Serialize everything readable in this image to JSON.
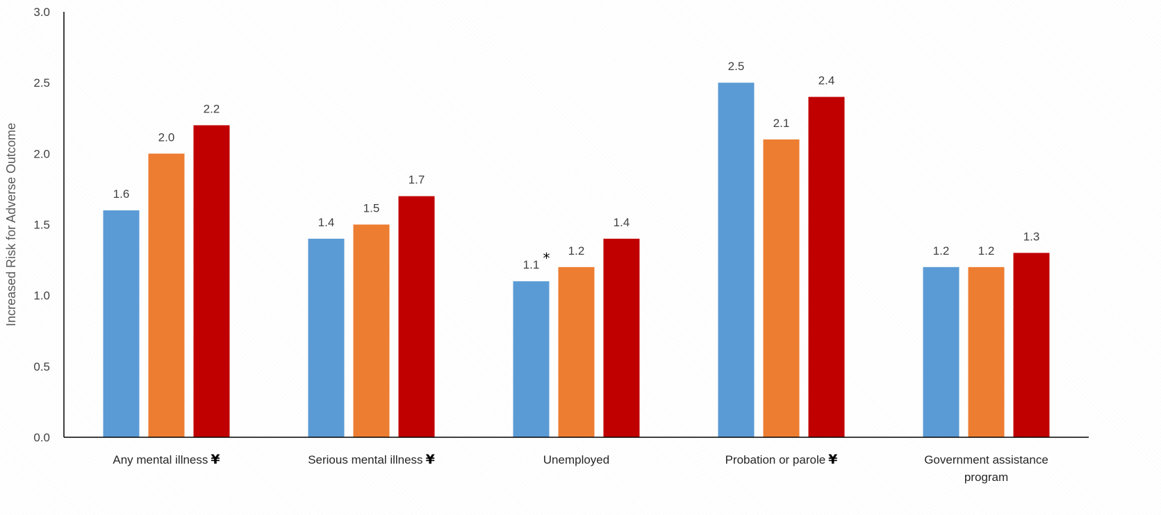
{
  "chart_data": {
    "type": "bar",
    "categories": [
      {
        "label": "Any mental illness",
        "marker": "¥",
        "lines": [
          "Any mental illness"
        ]
      },
      {
        "label": "Serious mental illness",
        "marker": "¥",
        "lines": [
          "Serious mental illness"
        ]
      },
      {
        "label": "Unemployed",
        "marker": "",
        "lines": [
          "Unemployed"
        ]
      },
      {
        "label": "Probation or parole",
        "marker": "¥",
        "lines": [
          "Probation or parole"
        ]
      },
      {
        "label": "Government assistance program",
        "marker": "",
        "lines": [
          "Government assistance",
          "program"
        ]
      }
    ],
    "series": [
      {
        "values": [
          1.6,
          1.4,
          1.1,
          2.5,
          1.2
        ],
        "color": "#5B9BD5"
      },
      {
        "values": [
          2.0,
          1.5,
          1.2,
          2.1,
          1.2
        ],
        "color": "#ED7D31"
      },
      {
        "values": [
          2.2,
          1.7,
          1.4,
          2.4,
          1.3
        ],
        "color": "#C00000"
      }
    ],
    "data_labels": [
      [
        "1.6",
        "1.4",
        "1.1",
        "2.5",
        "1.2"
      ],
      [
        "2.0",
        "1.5",
        "1.2",
        "2.1",
        "1.2"
      ],
      [
        "2.2",
        "1.7",
        "1.4",
        "2.4",
        "1.3"
      ]
    ],
    "annotations": [
      {
        "series": 0,
        "category": 2,
        "text": "*"
      }
    ],
    "ylabel": "Increased Risk for Adverse Outcome",
    "ylim": [
      0,
      3.0
    ],
    "yticks": [
      "0.0",
      "0.5",
      "1.0",
      "1.5",
      "2.0",
      "2.5",
      "3.0"
    ],
    "ytick_values": [
      0,
      0.5,
      1.0,
      1.5,
      2.0,
      2.5,
      3.0
    ],
    "grid": false,
    "legend": "none"
  }
}
